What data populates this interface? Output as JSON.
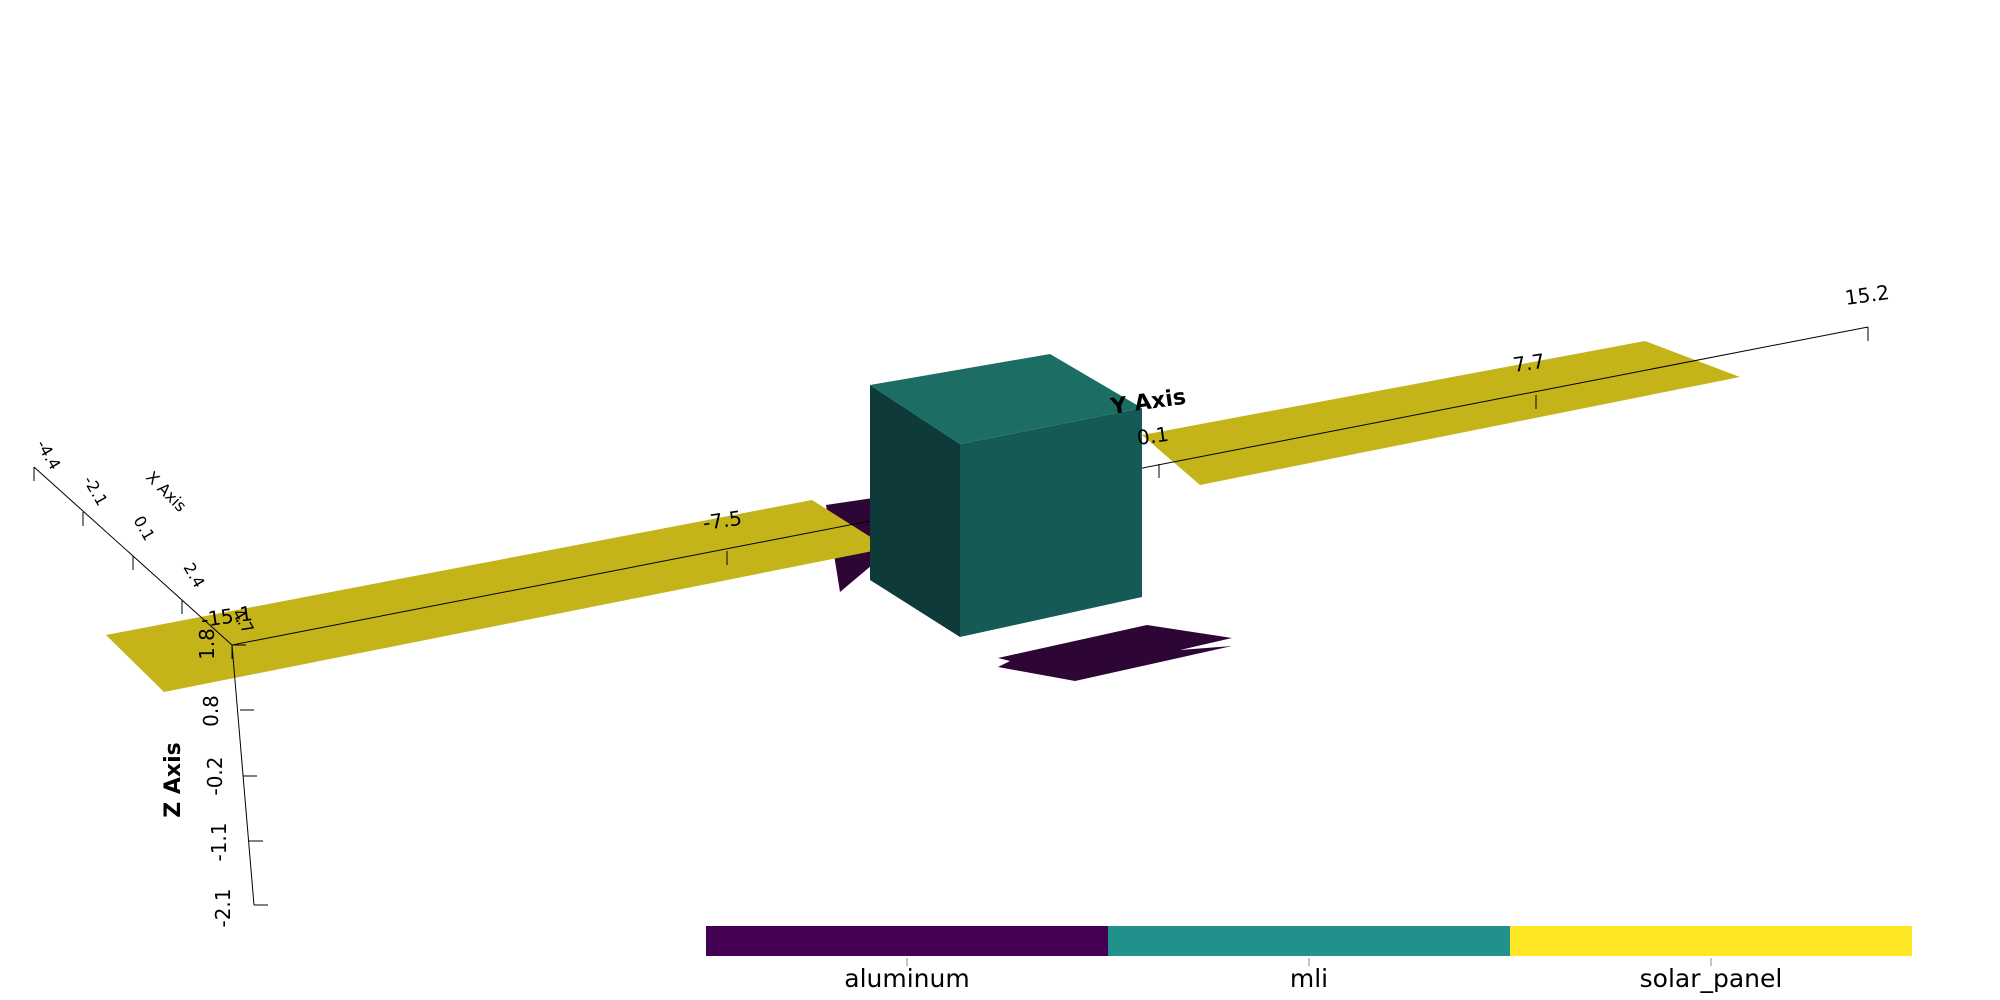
{
  "scene": {
    "x_axis": {
      "title": "X Axis",
      "ticks": [
        "-4.4",
        "-2.1",
        "0.1",
        "2.4",
        "4.7"
      ]
    },
    "y_axis": {
      "title": "Y Axis",
      "ticks": [
        "-15.1",
        "-7.5",
        "0.1",
        "7.7",
        "15.2"
      ]
    },
    "z_axis": {
      "title": "Z Axis",
      "ticks": [
        "1.8",
        "0.8",
        "-0.2",
        "-1.1",
        "-2.1"
      ]
    }
  },
  "parts": [
    {
      "name": "left solar panel",
      "material": "solar_panel"
    },
    {
      "name": "right solar panel",
      "material": "solar_panel"
    },
    {
      "name": "bus box",
      "material": "mli"
    },
    {
      "name": "antenna plate",
      "material": "aluminum"
    },
    {
      "name": "rear mount",
      "material": "aluminum"
    }
  ],
  "colorbar": {
    "categories": [
      {
        "label": "aluminum",
        "color": "#440154"
      },
      {
        "label": "mli",
        "color": "#21918c"
      },
      {
        "label": "solar_panel",
        "color": "#fde725"
      }
    ]
  },
  "shading": {
    "solar_panel": "#c4b41a",
    "mli_top": "#1c6e65",
    "mli_front": "#155a54",
    "mli_side": "#0e3a3a",
    "aluminum": "#2e0636"
  }
}
